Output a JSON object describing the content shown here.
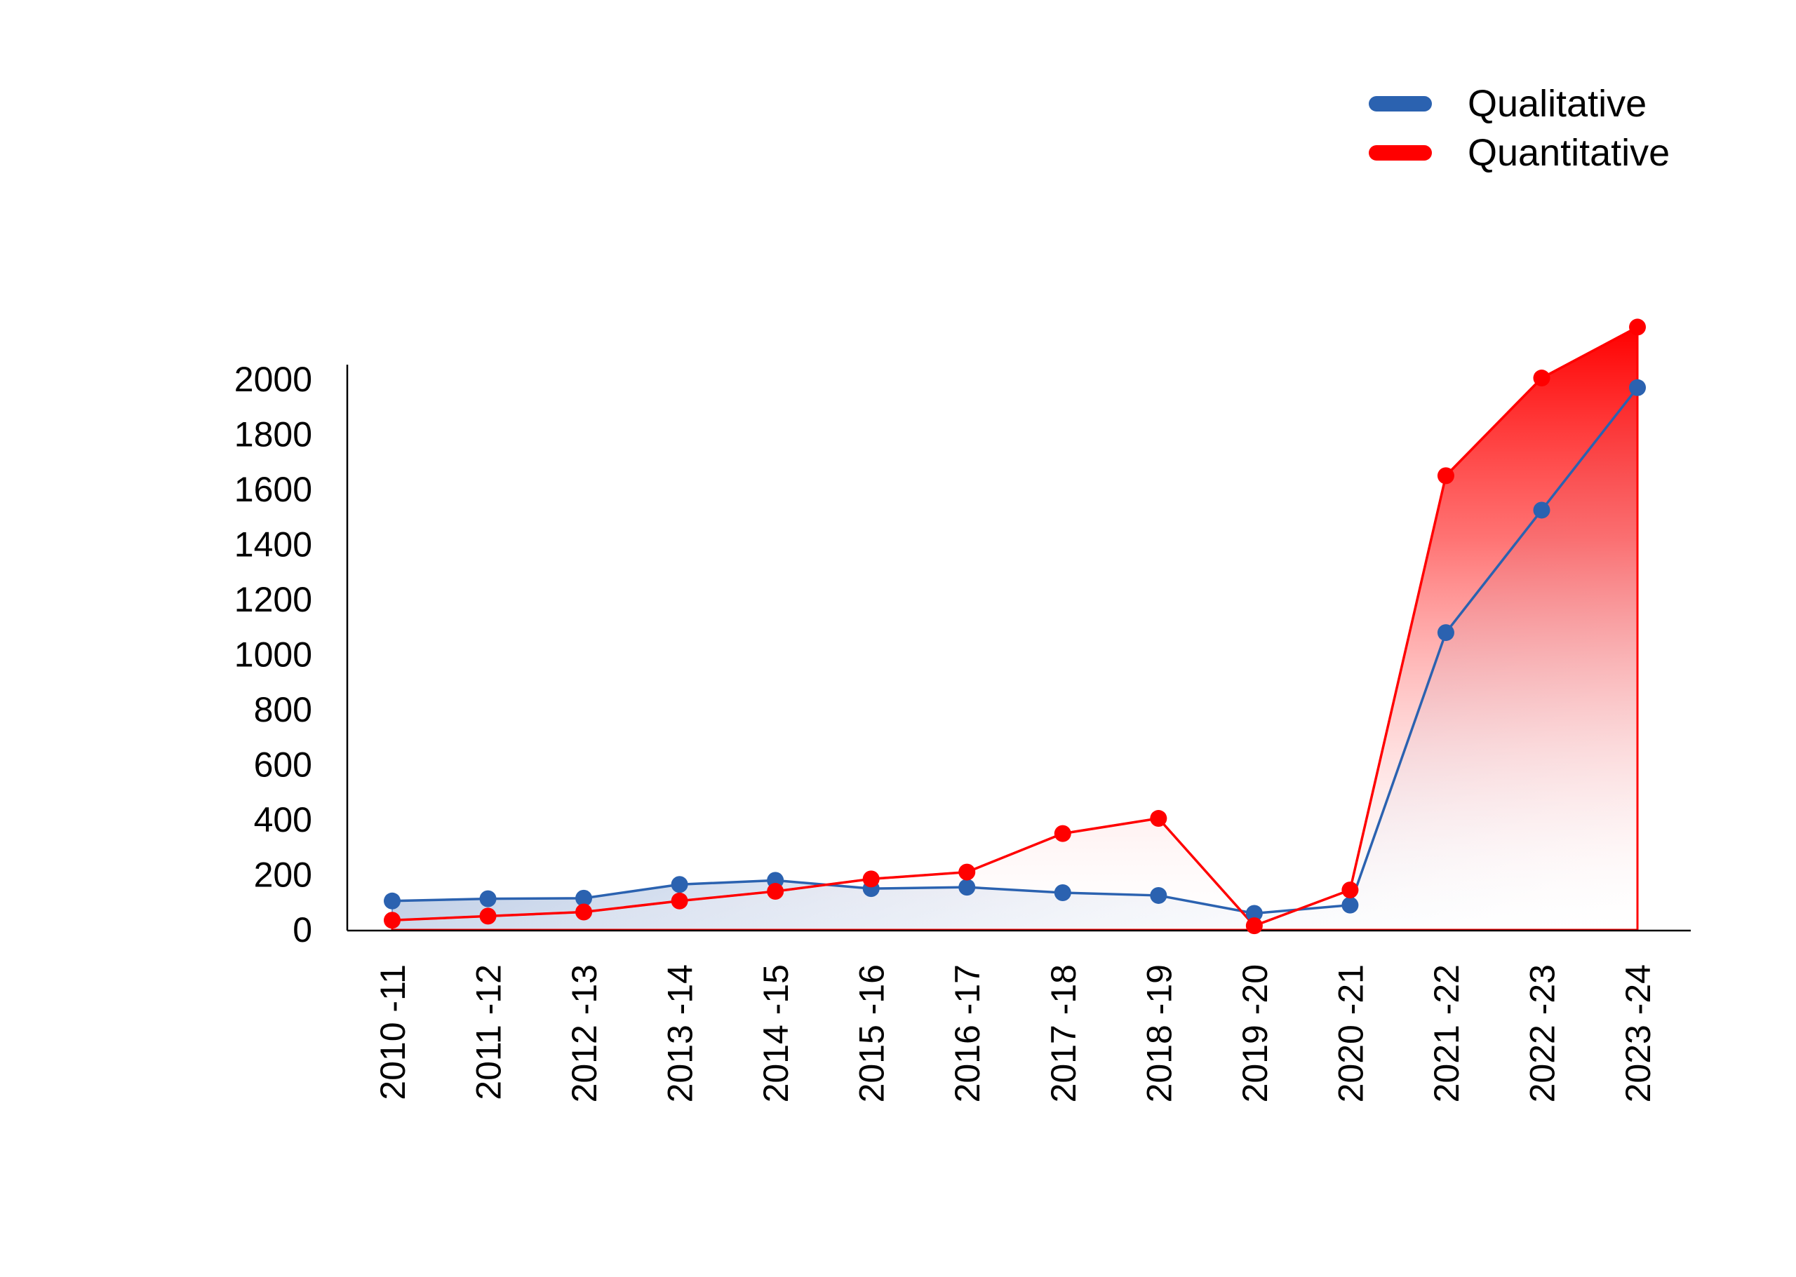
{
  "chart_data": {
    "type": "area",
    "categories": [
      "2010 -11",
      "2011 -12",
      "2012 -13",
      "2013 -14",
      "2014 -15",
      "2015 -16",
      "2016 -17",
      "2017 -18",
      "2018 -19",
      "2019 -20",
      "2020 -21",
      "2021 -22",
      "2022 -23",
      "2023 -24"
    ],
    "series": [
      {
        "name": "Qualitative",
        "color": "#2b62b0",
        "values": [
          105,
          113,
          115,
          165,
          180,
          150,
          155,
          135,
          125,
          60,
          90,
          1080,
          1525,
          1970
        ]
      },
      {
        "name": "Quantitative",
        "color": "#ff0000",
        "values": [
          35,
          50,
          65,
          105,
          140,
          185,
          210,
          350,
          405,
          15,
          145,
          1650,
          2005,
          2190
        ]
      }
    ],
    "ylim": [
      0,
      2100
    ],
    "yticks": [
      0,
      200,
      400,
      600,
      800,
      1000,
      1200,
      1400,
      1600,
      1800,
      2000
    ],
    "legend_position": "top-right",
    "grid": false
  }
}
